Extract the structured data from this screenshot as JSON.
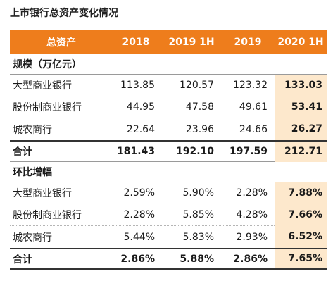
{
  "title": "上市银行总资产变化情况",
  "chart_data": {
    "type": "table",
    "header": {
      "label": "总资产",
      "columns": [
        "2018",
        "2019 1H",
        "2019",
        "2020 1H"
      ]
    },
    "sections": [
      {
        "title": "规模（万亿元）",
        "rows": [
          {
            "label": "大型商业银行",
            "values": [
              "113.85",
              "120.57",
              "123.32",
              "133.03"
            ]
          },
          {
            "label": "股份制商业银行",
            "values": [
              "44.95",
              "47.58",
              "49.61",
              "53.41"
            ]
          },
          {
            "label": "城农商行",
            "values": [
              "22.64",
              "23.96",
              "24.66",
              "26.27"
            ]
          },
          {
            "label": "合计",
            "values": [
              "181.43",
              "192.10",
              "197.59",
              "212.71"
            ]
          }
        ]
      },
      {
        "title": "环比增幅",
        "rows": [
          {
            "label": "大型商业银行",
            "values": [
              "2.59%",
              "5.90%",
              "2.28%",
              "7.88%"
            ]
          },
          {
            "label": "股份制商业银行",
            "values": [
              "2.28%",
              "5.85%",
              "4.28%",
              "7.66%"
            ]
          },
          {
            "label": "城农商行",
            "values": [
              "5.44%",
              "5.83%",
              "2.93%",
              "6.52%"
            ]
          },
          {
            "label": "合计",
            "values": [
              "2.86%",
              "5.88%",
              "2.86%",
              "7.65%"
            ]
          }
        ]
      }
    ],
    "highlight_column_color": "#fde8cc",
    "header_color": "#ee7d1c"
  }
}
